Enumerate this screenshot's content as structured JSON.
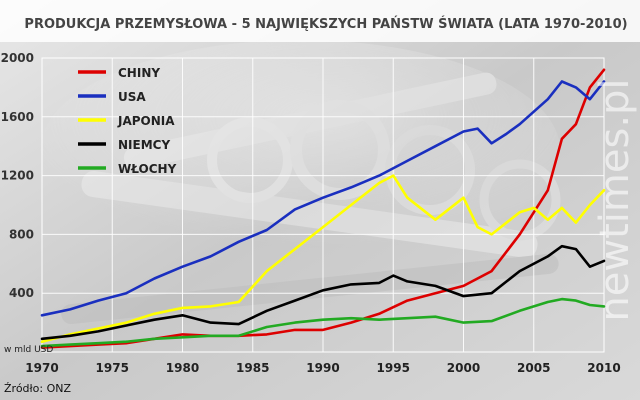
{
  "chart_data": {
    "type": "line",
    "title": "PRODUKCJA PRZEMYSŁOWA - 5 NAJWIĘKSZYCH PAŃSTW ŚWIATA (LATA 1970-2010)",
    "unit_label": "w mld USD",
    "source": "Źródło: ONZ",
    "watermark": "newtimes.pl",
    "xlim": [
      1970,
      2010
    ],
    "ylim": [
      0,
      2000
    ],
    "x_ticks": [
      1970,
      1975,
      1980,
      1985,
      1990,
      1995,
      2000,
      2005,
      2010
    ],
    "y_ticks": [
      400,
      800,
      1200,
      1600,
      2000
    ],
    "grid": true,
    "legend": "top-left",
    "series": [
      {
        "name": "CHINY",
        "color": "#dd0000",
        "x": [
          1970,
          1972,
          1974,
          1976,
          1978,
          1980,
          1982,
          1984,
          1986,
          1988,
          1990,
          1992,
          1994,
          1996,
          1998,
          2000,
          2002,
          2004,
          2005,
          2006,
          2007,
          2008,
          2009,
          2010
        ],
        "values": [
          30,
          40,
          50,
          60,
          90,
          120,
          110,
          110,
          120,
          150,
          150,
          200,
          260,
          350,
          400,
          450,
          550,
          800,
          950,
          1100,
          1450,
          1550,
          1800,
          1920
        ]
      },
      {
        "name": "USA",
        "color": "#1a2fbf",
        "x": [
          1970,
          1972,
          1974,
          1976,
          1978,
          1980,
          1982,
          1984,
          1986,
          1988,
          1990,
          1992,
          1994,
          1996,
          1998,
          2000,
          2001,
          2002,
          2003,
          2004,
          2006,
          2007,
          2008,
          2009,
          2010
        ],
        "values": [
          250,
          290,
          350,
          400,
          500,
          580,
          650,
          750,
          830,
          970,
          1050,
          1120,
          1200,
          1300,
          1400,
          1500,
          1520,
          1420,
          1480,
          1550,
          1720,
          1840,
          1800,
          1720,
          1840
        ]
      },
      {
        "name": "JAPONIA",
        "color": "#ffff00",
        "x": [
          1970,
          1972,
          1974,
          1976,
          1978,
          1980,
          1982,
          1984,
          1986,
          1988,
          1990,
          1992,
          1994,
          1995,
          1996,
          1998,
          2000,
          2001,
          2002,
          2004,
          2005,
          2006,
          2007,
          2008,
          2009,
          2010
        ],
        "values": [
          70,
          120,
          160,
          200,
          260,
          300,
          310,
          340,
          550,
          700,
          850,
          1000,
          1150,
          1200,
          1050,
          900,
          1050,
          850,
          800,
          950,
          980,
          900,
          980,
          880,
          1000,
          1100
        ]
      },
      {
        "name": "NIEMCY",
        "color": "#000000",
        "x": [
          1970,
          1972,
          1974,
          1976,
          1978,
          1980,
          1982,
          1984,
          1986,
          1988,
          1990,
          1992,
          1994,
          1995,
          1996,
          1998,
          2000,
          2002,
          2004,
          2006,
          2007,
          2008,
          2009,
          2010
        ],
        "values": [
          90,
          110,
          140,
          180,
          220,
          250,
          200,
          190,
          280,
          350,
          420,
          460,
          470,
          520,
          480,
          450,
          380,
          400,
          550,
          650,
          720,
          700,
          580,
          620
        ]
      },
      {
        "name": "WŁOCHY",
        "color": "#22aa22",
        "x": [
          1970,
          1972,
          1974,
          1976,
          1978,
          1980,
          1982,
          1984,
          1986,
          1988,
          1990,
          1992,
          1994,
          1996,
          1998,
          2000,
          2002,
          2004,
          2006,
          2007,
          2008,
          2009,
          2010
        ],
        "values": [
          40,
          50,
          60,
          70,
          90,
          100,
          110,
          110,
          170,
          200,
          220,
          230,
          220,
          230,
          240,
          200,
          210,
          280,
          340,
          360,
          350,
          320,
          310
        ]
      }
    ]
  }
}
